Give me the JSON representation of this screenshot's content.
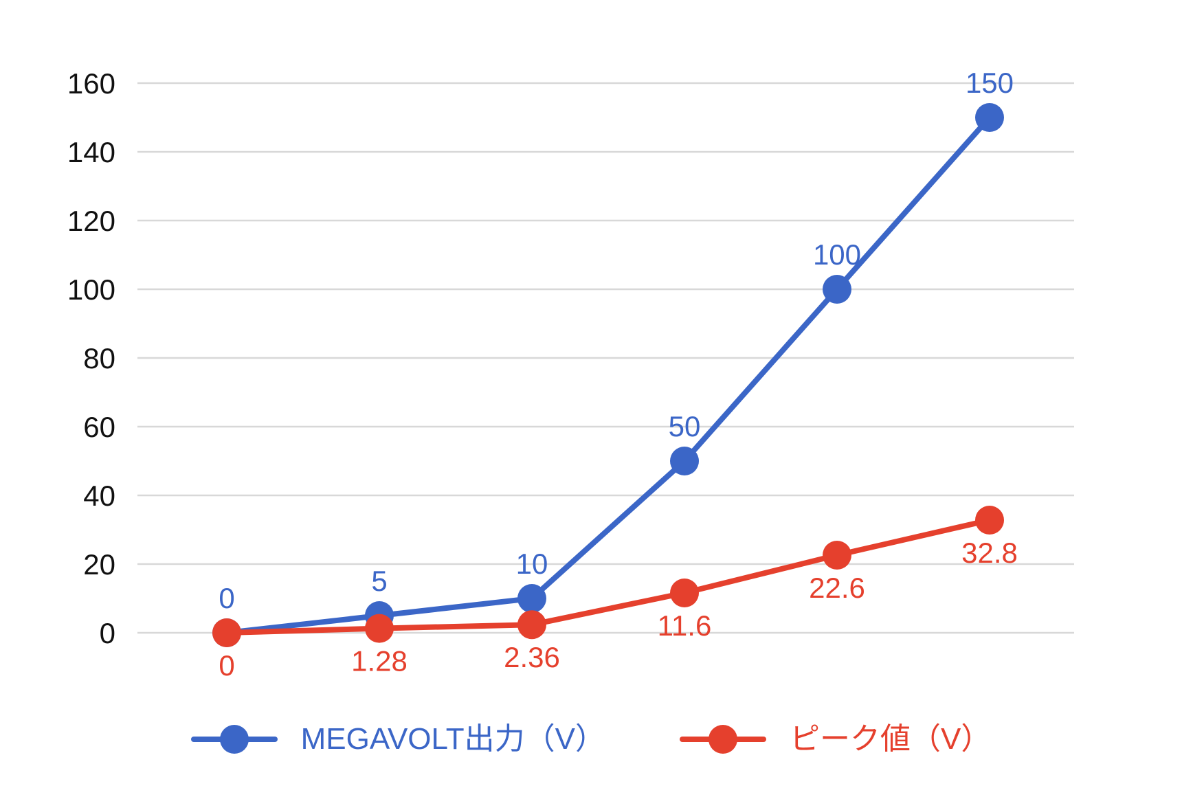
{
  "chart_data": {
    "type": "line",
    "title": "",
    "ylim": [
      0,
      160
    ],
    "yticks": [
      0,
      20,
      40,
      60,
      80,
      100,
      120,
      140,
      160
    ],
    "grid": "horizontal-only",
    "x_axis_labels_visible": false,
    "legend_position": "bottom",
    "background_color": "#ffffff",
    "gridline_color": "#d8d8d8",
    "tick_label_color": "#111111",
    "series": [
      {
        "name": "MEGAVOLT出力（V）",
        "color": "#3b66c7",
        "values": [
          0,
          5,
          10,
          50,
          100,
          150
        ],
        "point_labels": [
          "0",
          "5",
          "10",
          "50",
          "100",
          "150"
        ],
        "label_position": "above"
      },
      {
        "name": "ピーク値（V）",
        "color": "#e5402d",
        "values": [
          0,
          1.28,
          2.36,
          11.6,
          22.6,
          32.8
        ],
        "point_labels": [
          "0",
          "1.28",
          "2.36",
          "11.6",
          "22.6",
          "32.8"
        ],
        "label_position": "below"
      }
    ]
  }
}
